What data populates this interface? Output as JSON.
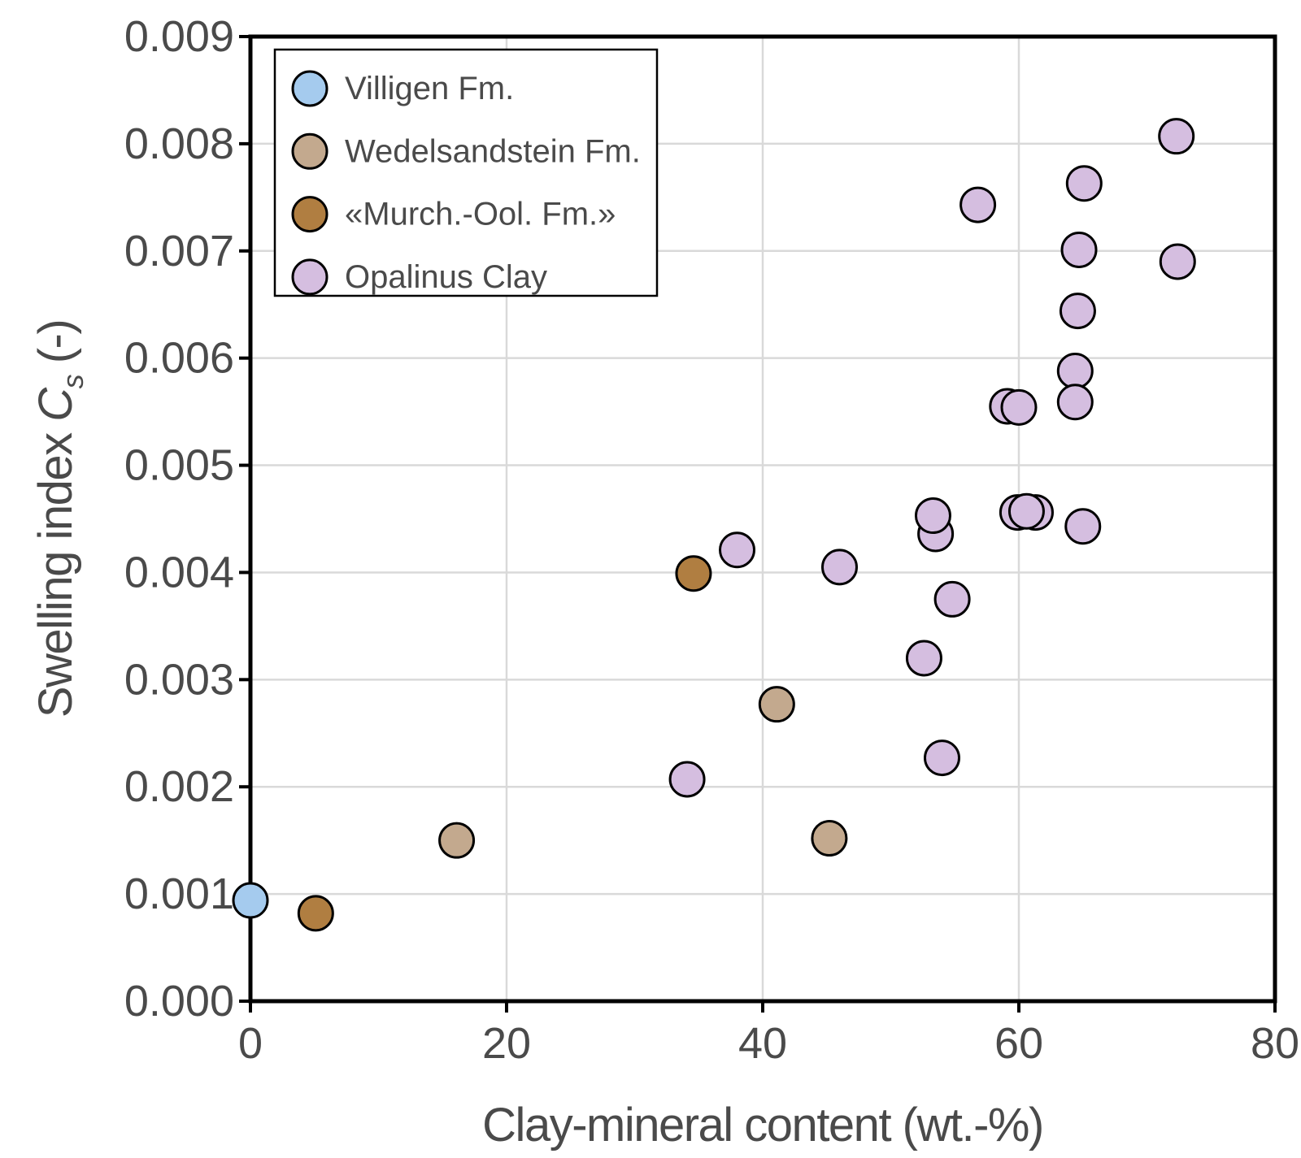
{
  "figure": {
    "background": "#FFFFFF",
    "text_color": "#4A4A4A",
    "axis_color": "#000000",
    "grid_color": "#D9D9D9",
    "legend_border_color": "#000000"
  },
  "chart_data": {
    "type": "scatter",
    "title": "",
    "xlabel": "Clay-mineral content (wt.-%)",
    "ylabel": "Swelling index Cs (-)",
    "ylabel_parts": {
      "prefix": "Swelling index ",
      "symbol": "C",
      "subscript": "s",
      "suffix": " (-)"
    },
    "xlim": [
      0,
      80
    ],
    "ylim": [
      0,
      0.009
    ],
    "xticks": [
      0,
      20,
      40,
      60,
      80
    ],
    "yticks": [
      0.0,
      0.001,
      0.002,
      0.003,
      0.004,
      0.005,
      0.006,
      0.007,
      0.008,
      0.009
    ],
    "ytick_decimals": 3,
    "grid": true,
    "legend_position": "upper-left",
    "marker": {
      "radius": 21,
      "stroke": "#000000",
      "stroke_width": 3
    },
    "series": [
      {
        "name": "Villigen Fm.",
        "color": "#A5CBEE",
        "points": [
          [
            0,
            0.00094
          ]
        ]
      },
      {
        "name": "Wedelsandstein Fm.",
        "color": "#C3A98E",
        "points": [
          [
            16.1,
            0.0015
          ],
          [
            41.1,
            0.00277
          ],
          [
            45.2,
            0.00152
          ]
        ]
      },
      {
        "name": "«Murch.-Ool. Fm.»",
        "color": "#B07E41",
        "points": [
          [
            5.1,
            0.00082
          ],
          [
            34.6,
            0.00399
          ]
        ]
      },
      {
        "name": "Opalinus Clay",
        "color": "#D5BEE0",
        "points": [
          [
            72.3,
            0.00807
          ],
          [
            65.1,
            0.00763
          ],
          [
            56.8,
            0.00743
          ],
          [
            64.7,
            0.00701
          ],
          [
            72.4,
            0.0069
          ],
          [
            64.6,
            0.00644
          ],
          [
            64.4,
            0.00588
          ],
          [
            64.4,
            0.00559
          ],
          [
            59.1,
            0.00555
          ],
          [
            60.0,
            0.00554
          ],
          [
            59.9,
            0.00456
          ],
          [
            61.3,
            0.00456
          ],
          [
            60.6,
            0.00457
          ],
          [
            53.5,
            0.00436
          ],
          [
            53.3,
            0.00453
          ],
          [
            65.0,
            0.00443
          ],
          [
            38.0,
            0.00421
          ],
          [
            46.0,
            0.00405
          ],
          [
            54.8,
            0.00375
          ],
          [
            52.6,
            0.0032
          ],
          [
            54.0,
            0.00227
          ],
          [
            34.1,
            0.00207
          ]
        ]
      }
    ]
  }
}
